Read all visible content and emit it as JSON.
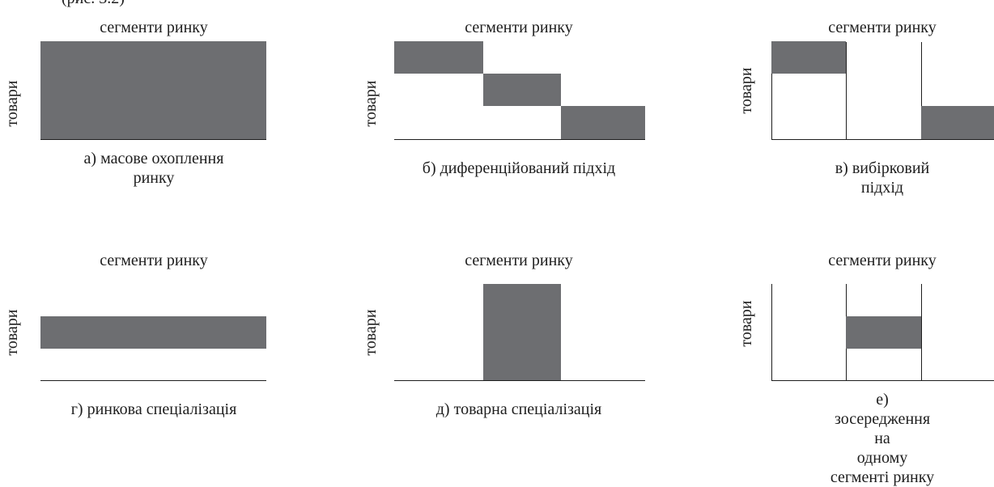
{
  "top_fragment": "(рис. 3.2)",
  "colors": {
    "fill": "#6d6e71",
    "line": "#1e1e1e"
  },
  "panels": [
    {
      "id": "a",
      "top_label": "сегменти ринку",
      "side_label": "товари",
      "caption_line1": "а) масове охоплення",
      "caption_line2": "ринку"
    },
    {
      "id": "b",
      "top_label": "сегменти ринку",
      "side_label": "товари",
      "caption_line1": "б) диференційований підхід",
      "caption_line2": ""
    },
    {
      "id": "v",
      "top_label": "сегменти ринку",
      "side_label": "товари",
      "caption_line1": "в) вибірковий підхід",
      "caption_line2": ""
    },
    {
      "id": "g",
      "top_label": "сегменти ринку",
      "side_label": "товари",
      "caption_line1": "г) ринкова спеціалізація",
      "caption_line2": ""
    },
    {
      "id": "d",
      "top_label": "сегменти ринку",
      "side_label": "товари",
      "caption_line1": "д) товарна спеціалізація",
      "caption_line2": ""
    },
    {
      "id": "e",
      "top_label": "сегменти ринку",
      "side_label": "товари",
      "caption_line1": "е) зосередження на",
      "caption_line2": "одному сегменті ринку"
    }
  ]
}
